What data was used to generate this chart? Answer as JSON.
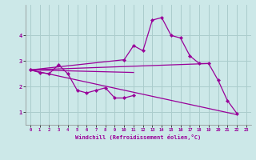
{
  "background_color": "#cce8e8",
  "grid_color": "#aacccc",
  "line_color": "#990099",
  "marker_color": "#990099",
  "xlabel": "Windchill (Refroidissement éolien,°C)",
  "xlim": [
    -0.5,
    23.5
  ],
  "ylim": [
    0.5,
    5.2
  ],
  "yticks": [
    1,
    2,
    3,
    4
  ],
  "xticks": [
    0,
    1,
    2,
    3,
    4,
    5,
    6,
    7,
    8,
    9,
    10,
    11,
    12,
    13,
    14,
    15,
    16,
    17,
    18,
    19,
    20,
    21,
    22,
    23
  ],
  "series_with_markers": [
    {
      "segments": [
        {
          "x": [
            0,
            1,
            2,
            3,
            4,
            5,
            6,
            7,
            8,
            9,
            10,
            11
          ],
          "y": [
            2.65,
            2.55,
            2.5,
            2.85,
            2.5,
            1.85,
            1.75,
            1.85,
            1.95,
            1.55,
            1.55,
            1.65
          ]
        }
      ]
    },
    {
      "segments": [
        {
          "x": [
            0,
            10,
            11,
            12,
            13,
            14,
            15,
            16,
            17,
            18,
            19,
            20,
            21,
            22
          ],
          "y": [
            2.65,
            3.05,
            3.6,
            3.4,
            4.6,
            4.7,
            4.0,
            3.9,
            3.2,
            2.9,
            2.9,
            2.25,
            1.45,
            0.95
          ]
        }
      ]
    }
  ],
  "series_lines": [
    {
      "x": [
        0,
        22
      ],
      "y": [
        2.65,
        0.9
      ]
    },
    {
      "x": [
        0,
        19
      ],
      "y": [
        2.65,
        2.9
      ]
    },
    {
      "x": [
        0,
        11
      ],
      "y": [
        2.65,
        2.55
      ]
    }
  ]
}
